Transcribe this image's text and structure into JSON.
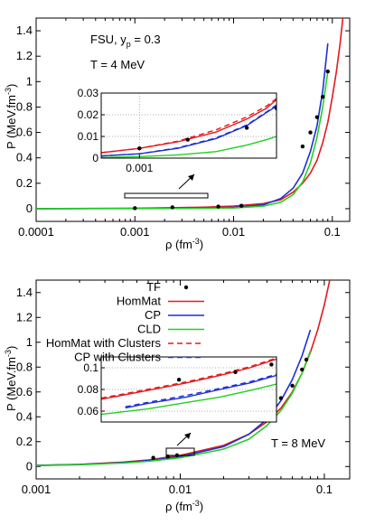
{
  "chart_data": [
    {
      "type": "line",
      "annotations": [
        "FSU, y",
        "p",
        " = 0.3",
        "T = 4 MeV"
      ],
      "xlabel": "ρ (fm",
      "xlabel_sup": "-3",
      "xlabel_end": ")",
      "ylabel": "P (MeV.fm",
      "ylabel_sup": "-3",
      "ylabel_end": ")",
      "x_scale": "log",
      "xlim": [
        0.0001,
        0.15
      ],
      "ylim": [
        -0.1,
        1.5
      ],
      "x_ticks": [
        {
          "v": 0.0001,
          "label": "0.0001"
        },
        {
          "v": 0.001,
          "label": "0.001"
        },
        {
          "v": 0.01,
          "label": "0.01"
        },
        {
          "v": 0.1,
          "label": "0.1"
        }
      ],
      "y_ticks": [
        {
          "v": 0,
          "label": "0"
        },
        {
          "v": 0.2,
          "label": "0.2"
        },
        {
          "v": 0.4,
          "label": "0.4"
        },
        {
          "v": 0.6,
          "label": "0.6"
        },
        {
          "v": 0.8,
          "label": "0.8"
        },
        {
          "v": 1.0,
          "label": "1"
        },
        {
          "v": 1.2,
          "label": "1.2"
        },
        {
          "v": 1.4,
          "label": "1.4"
        }
      ],
      "series": [
        {
          "key": "HomMat",
          "color": "#e41a1c",
          "dash": false,
          "x": [
            0.0001,
            0.001,
            0.005,
            0.01,
            0.02,
            0.03,
            0.04,
            0.05,
            0.06,
            0.07,
            0.08,
            0.09,
            0.1,
            0.11,
            0.12,
            0.13
          ],
          "y": [
            0.0003,
            0.003,
            0.012,
            0.02,
            0.04,
            0.07,
            0.13,
            0.2,
            0.28,
            0.38,
            0.52,
            0.68,
            0.88,
            1.08,
            1.3,
            1.55
          ]
        },
        {
          "key": "CP",
          "color": "#1c2fd6",
          "dash": false,
          "x": [
            0.0001,
            0.001,
            0.005,
            0.01,
            0.02,
            0.03,
            0.04,
            0.05,
            0.06,
            0.07,
            0.08,
            0.09
          ],
          "y": [
            0.0003,
            0.002,
            0.006,
            0.01,
            0.03,
            0.08,
            0.16,
            0.28,
            0.45,
            0.65,
            0.93,
            1.3
          ]
        },
        {
          "key": "CLD",
          "color": "#22d022",
          "dash": false,
          "x": [
            0.0001,
            0.001,
            0.005,
            0.01,
            0.02,
            0.03,
            0.04,
            0.05,
            0.06,
            0.07,
            0.08,
            0.09
          ],
          "y": [
            0.0002,
            0.001,
            0.003,
            0.005,
            0.02,
            0.05,
            0.11,
            0.21,
            0.36,
            0.56,
            0.8,
            1.08
          ]
        },
        {
          "key": "HomMat with Clusters",
          "color": "#e41a1c",
          "dash": true,
          "x": [],
          "y": []
        },
        {
          "key": "CP with Clusters",
          "color": "#1c2fd6",
          "dash": true,
          "x": [],
          "y": []
        }
      ],
      "tf_points": {
        "x": [
          0.001,
          0.0024,
          0.007,
          0.012,
          0.05,
          0.06,
          0.07,
          0.08,
          0.09
        ],
        "y": [
          0.004,
          0.011,
          0.017,
          0.023,
          0.49,
          0.6,
          0.72,
          0.88,
          1.08
        ]
      },
      "inset": {
        "xlim": [
          0.0005,
          0.012
        ],
        "ylim": [
          0,
          0.03
        ],
        "y_ticks": [
          {
            "v": 0,
            "label": "0"
          },
          {
            "v": 0.01,
            "label": "0.01"
          },
          {
            "v": 0.02,
            "label": "0.02"
          },
          {
            "v": 0.03,
            "label": "0.03"
          }
        ],
        "x_ticks": [
          {
            "v": 0.001,
            "label": "0.001"
          }
        ],
        "series": [
          {
            "key": "HomMat",
            "x": [
              0.0005,
              0.001,
              0.002,
              0.004,
              0.007,
              0.01,
              0.012
            ],
            "y": [
              0.0025,
              0.0045,
              0.0075,
              0.012,
              0.018,
              0.023,
              0.027
            ]
          },
          {
            "key": "HomMat with Clusters",
            "x": [
              0.0005,
              0.001,
              0.002,
              0.004,
              0.007,
              0.01,
              0.012
            ],
            "y": [
              0.0025,
              0.0045,
              0.0078,
              0.013,
              0.019,
              0.024,
              0.0275
            ]
          },
          {
            "key": "CP",
            "x": [
              0.0005,
              0.001,
              0.002,
              0.004,
              0.007,
              0.01,
              0.012
            ],
            "y": [
              0.001,
              0.002,
              0.0045,
              0.009,
              0.015,
              0.021,
              0.024
            ]
          },
          {
            "key": "CP with Clusters",
            "x": [
              0.0005,
              0.001,
              0.002,
              0.004,
              0.007,
              0.01,
              0.012
            ],
            "y": [
              0.001,
              0.002,
              0.0047,
              0.0093,
              0.0153,
              0.0213,
              0.0245
            ]
          },
          {
            "key": "CLD",
            "x": [
              0.0005,
              0.001,
              0.002,
              0.004,
              0.007,
              0.01,
              0.012
            ],
            "y": [
              0.0003,
              0.0007,
              0.0015,
              0.003,
              0.006,
              0.0085,
              0.01
            ]
          }
        ],
        "tf_points": {
          "x": [
            0.001,
            0.0024,
            0.007,
            0.012
          ],
          "y": [
            0.0045,
            0.0085,
            0.014,
            0.023
          ]
        }
      }
    },
    {
      "type": "line",
      "annotations": [
        "T = 8 MeV"
      ],
      "xlabel": "ρ (fm",
      "xlabel_sup": "-3",
      "xlabel_end": ")",
      "ylabel": "P (MeV.fm",
      "ylabel_sup": "-3",
      "ylabel_end": ")",
      "x_scale": "log",
      "xlim": [
        0.001,
        0.15
      ],
      "ylim": [
        -0.1,
        1.5
      ],
      "x_ticks": [
        {
          "v": 0.001,
          "label": "0.001"
        },
        {
          "v": 0.01,
          "label": "0.01"
        },
        {
          "v": 0.1,
          "label": "0.1"
        }
      ],
      "y_ticks": [
        {
          "v": 0,
          "label": "0"
        },
        {
          "v": 0.2,
          "label": "0.2"
        },
        {
          "v": 0.4,
          "label": "0.4"
        },
        {
          "v": 0.6,
          "label": "0.6"
        },
        {
          "v": 0.8,
          "label": "0.8"
        },
        {
          "v": 1.0,
          "label": "1"
        },
        {
          "v": 1.2,
          "label": "1.2"
        },
        {
          "v": 1.4,
          "label": "1.4"
        }
      ],
      "legend": {
        "placement": "top-left",
        "tf_label": "TF"
      },
      "series": [
        {
          "key": "HomMat",
          "color": "#e41a1c",
          "dash": false,
          "x": [
            0.001,
            0.002,
            0.004,
            0.006,
            0.01,
            0.02,
            0.03,
            0.04,
            0.05,
            0.06,
            0.07,
            0.08,
            0.09,
            0.1,
            0.11
          ],
          "y": [
            0.008,
            0.017,
            0.035,
            0.052,
            0.09,
            0.17,
            0.26,
            0.36,
            0.47,
            0.6,
            0.75,
            0.92,
            1.1,
            1.3,
            1.52
          ]
        },
        {
          "key": "CP",
          "color": "#1c2fd6",
          "dash": false,
          "x": [
            0.001,
            0.002,
            0.004,
            0.006,
            0.01,
            0.02,
            0.03,
            0.04,
            0.05,
            0.06,
            0.07,
            0.08
          ],
          "y": [
            0.008,
            0.016,
            0.032,
            0.048,
            0.08,
            0.16,
            0.26,
            0.38,
            0.53,
            0.7,
            0.89,
            1.1
          ]
        },
        {
          "key": "CLD",
          "color": "#22d022",
          "dash": false,
          "x": [
            0.001,
            0.002,
            0.004,
            0.006,
            0.01,
            0.02,
            0.03,
            0.04,
            0.05,
            0.06,
            0.07,
            0.08
          ],
          "y": [
            0.007,
            0.014,
            0.028,
            0.042,
            0.07,
            0.14,
            0.22,
            0.33,
            0.45,
            0.59,
            0.75,
            0.93
          ]
        },
        {
          "key": "HomMat with Clusters",
          "color": "#e41a1c",
          "dash": true,
          "x": [],
          "y": []
        },
        {
          "key": "CP with Clusters",
          "color": "#1c2fd6",
          "dash": true,
          "x": [],
          "y": []
        }
      ],
      "tf_points": {
        "x": [
          0.0065,
          0.0082,
          0.0095,
          0.038,
          0.05,
          0.06,
          0.07,
          0.075
        ],
        "y": [
          0.07,
          0.08,
          0.09,
          0.44,
          0.55,
          0.65,
          0.78,
          0.86
        ]
      },
      "inset": {
        "xlim": [
          0.005,
          0.01
        ],
        "ylim": [
          0.05,
          0.11
        ],
        "y_ticks": [
          {
            "v": 0.06,
            "label": "0.06"
          },
          {
            "v": 0.08,
            "label": "0.08"
          },
          {
            "v": 0.1,
            "label": "0.1"
          }
        ],
        "x_ticks": [],
        "series": [
          {
            "key": "HomMat",
            "x": [
              0.005,
              0.006,
              0.007,
              0.008,
              0.009,
              0.01
            ],
            "y": [
              0.071,
              0.079,
              0.086,
              0.093,
              0.1,
              0.108
            ]
          },
          {
            "key": "HomMat with Clusters",
            "x": [
              0.005,
              0.006,
              0.007,
              0.008,
              0.009,
              0.01
            ],
            "y": [
              0.072,
              0.08,
              0.087,
              0.094,
              0.101,
              0.109
            ]
          },
          {
            "key": "CP",
            "x": [
              0.0055,
              0.006,
              0.007,
              0.008,
              0.009,
              0.01
            ],
            "y": [
              0.063,
              0.067,
              0.073,
              0.08,
              0.086,
              0.093
            ]
          },
          {
            "key": "CP with Clusters",
            "x": [
              0.0055,
              0.006,
              0.007,
              0.008,
              0.009,
              0.01
            ],
            "y": [
              0.064,
              0.068,
              0.0745,
              0.081,
              0.087,
              0.094
            ]
          },
          {
            "key": "CLD",
            "x": [
              0.005,
              0.006,
              0.007,
              0.008,
              0.009,
              0.01
            ],
            "y": [
              0.057,
              0.062,
              0.068,
              0.073,
              0.079,
              0.085
            ]
          }
        ],
        "tf_points": {
          "x": [
            0.0068,
            0.0085,
            0.0098
          ],
          "y": [
            0.089,
            0.096,
            0.103
          ]
        }
      }
    }
  ]
}
